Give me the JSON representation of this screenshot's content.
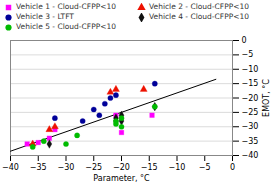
{
  "chart_data": {
    "type": "scatter",
    "xlabel": "Parameter, °C",
    "ylabel": "EMOT, °C",
    "xlim": [
      -40,
      0
    ],
    "ylim": [
      -40,
      0
    ],
    "xticks": [
      -40,
      -35,
      -30,
      -25,
      -20,
      -15,
      -10,
      -5,
      0
    ],
    "yticks": [
      0,
      -5,
      -10,
      -15,
      -20,
      -25,
      -30,
      -35,
      -40
    ],
    "grid": true,
    "legend": "top",
    "series": [
      {
        "type": "line",
        "color": "black",
        "x": [
          -40,
          -3
        ],
        "values": [
          -38.5,
          -13.5
        ]
      },
      {
        "name": "Vehicle 1 - Cloud-CFPP<10",
        "color": "#ff00ff",
        "marker": "square",
        "x": [
          -37,
          -35,
          -33,
          -32,
          -21,
          -20,
          -14.5
        ],
        "values": [
          -36,
          -35.5,
          -34,
          -31,
          -26,
          -32,
          -26
        ]
      },
      {
        "name": "Vehicle 2 - Cloud-CFPP<10",
        "color": "#ee1100",
        "marker": "triangle",
        "x": [
          -36,
          -33,
          -32,
          -22,
          -21,
          -16
        ],
        "values": [
          -36,
          -31,
          -30,
          -18,
          -17,
          -17
        ]
      },
      {
        "name": "Vehicle 3 - LTFT",
        "color": "#000099",
        "marker": "circle",
        "x": [
          -32,
          -27,
          -25,
          -24,
          -23,
          -22,
          -21,
          -14
        ],
        "values": [
          -27,
          -28,
          -24,
          -26,
          -22,
          -20,
          -19,
          -15
        ]
      },
      {
        "name": "Vehicle 4 - Cloud-CFPP<10",
        "color": "#111111",
        "marker": "diamond",
        "x": [
          -33,
          -21,
          -21,
          -20,
          -20,
          -14
        ],
        "values": [
          -36,
          -27,
          -28,
          -28,
          -26,
          -23
        ]
      },
      {
        "name": "Vehicle 5 - Cloud-CFPP<10",
        "color": "#00bb00",
        "marker": "circle",
        "x": [
          -36,
          -34,
          -30,
          -28,
          -21,
          -21,
          -20,
          -20,
          -14
        ],
        "values": [
          -37,
          -35,
          -36,
          -33,
          -29,
          -28,
          -30,
          -27,
          -23
        ]
      }
    ]
  }
}
